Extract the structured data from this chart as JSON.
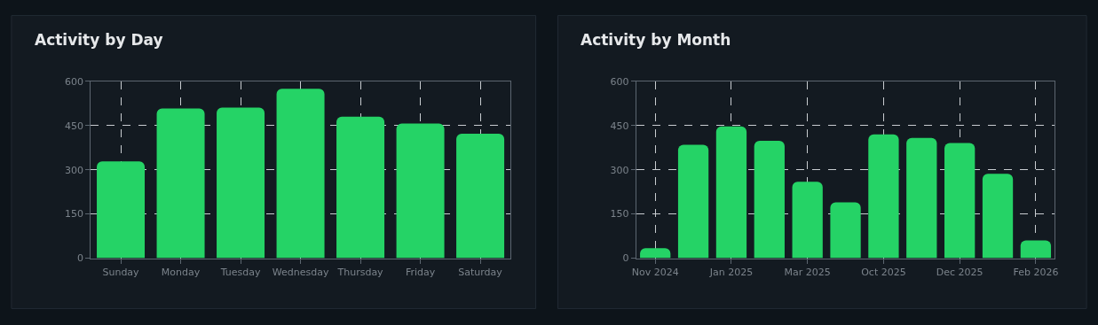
{
  "chart_data": [
    {
      "type": "bar",
      "title": "Activity by Day",
      "categories": [
        "Sunday",
        "Monday",
        "Tuesday",
        "Wednesday",
        "Thursday",
        "Friday",
        "Saturday"
      ],
      "values": [
        328,
        508,
        511,
        575,
        480,
        457,
        422
      ],
      "color": "#25d366",
      "ylim": [
        0,
        600
      ],
      "yticks": [
        0,
        150,
        300,
        450,
        600
      ],
      "grid": true
    },
    {
      "type": "bar",
      "title": "Activity by Month",
      "categories": [
        "Nov 2024",
        null,
        "Jan 2025",
        null,
        "Mar 2025",
        null,
        "Oct 2025",
        null,
        "Dec 2025",
        null,
        "Feb 2026"
      ],
      "values": [
        34,
        385,
        447,
        398,
        259,
        189,
        420,
        408,
        391,
        286,
        60
      ],
      "color": "#25d366",
      "ylim": [
        0,
        600
      ],
      "yticks": [
        0,
        150,
        300,
        450,
        600
      ],
      "grid": true
    }
  ]
}
